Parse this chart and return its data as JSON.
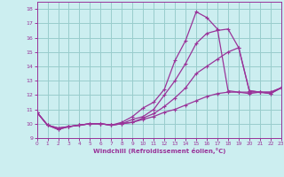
{
  "xlabel": "Windchill (Refroidissement éolien,°C)",
  "xlim": [
    0,
    23
  ],
  "ylim": [
    9,
    18.5
  ],
  "yticks": [
    9,
    10,
    11,
    12,
    13,
    14,
    15,
    16,
    17,
    18
  ],
  "xticks": [
    0,
    1,
    2,
    3,
    4,
    5,
    6,
    7,
    8,
    9,
    10,
    11,
    12,
    13,
    14,
    15,
    16,
    17,
    18,
    19,
    20,
    21,
    22,
    23
  ],
  "background_color": "#cceef0",
  "grid_color": "#99cccc",
  "line_color": "#993399",
  "lines": [
    {
      "x": [
        0,
        1,
        2,
        3,
        4,
        5,
        6,
        7,
        8,
        9,
        10,
        11,
        12,
        13,
        14,
        15,
        16,
        17,
        18,
        19,
        20,
        21,
        22,
        23
      ],
      "y": [
        10.8,
        9.9,
        9.6,
        9.8,
        9.9,
        10.0,
        10.0,
        9.9,
        10.1,
        10.5,
        11.1,
        11.5,
        12.4,
        14.4,
        15.8,
        17.8,
        17.4,
        16.6,
        12.3,
        12.2,
        12.1,
        12.2,
        12.1,
        12.5
      ]
    },
    {
      "x": [
        0,
        1,
        2,
        3,
        4,
        5,
        6,
        7,
        8,
        9,
        10,
        11,
        12,
        13,
        14,
        15,
        16,
        17,
        18,
        19,
        20,
        21,
        22,
        23
      ],
      "y": [
        10.8,
        9.9,
        9.6,
        9.8,
        9.9,
        10.0,
        10.0,
        9.9,
        10.0,
        10.3,
        10.5,
        11.0,
        12.0,
        13.0,
        14.2,
        15.6,
        16.3,
        16.5,
        16.6,
        15.3,
        12.3,
        12.2,
        12.1,
        12.5
      ]
    },
    {
      "x": [
        0,
        1,
        2,
        3,
        4,
        5,
        6,
        7,
        8,
        9,
        10,
        11,
        12,
        13,
        14,
        15,
        16,
        17,
        18,
        19,
        20,
        21,
        22,
        23
      ],
      "y": [
        10.8,
        9.9,
        9.7,
        9.8,
        9.9,
        10.0,
        10.0,
        9.9,
        10.0,
        10.1,
        10.4,
        10.7,
        11.2,
        11.8,
        12.5,
        13.5,
        14.0,
        14.5,
        15.0,
        15.3,
        12.3,
        12.2,
        12.2,
        12.5
      ]
    },
    {
      "x": [
        0,
        1,
        2,
        3,
        4,
        5,
        6,
        7,
        8,
        9,
        10,
        11,
        12,
        13,
        14,
        15,
        16,
        17,
        18,
        19,
        20,
        21,
        22,
        23
      ],
      "y": [
        10.8,
        9.9,
        9.7,
        9.8,
        9.9,
        10.0,
        10.0,
        9.9,
        10.0,
        10.1,
        10.3,
        10.5,
        10.8,
        11.0,
        11.3,
        11.6,
        11.9,
        12.1,
        12.2,
        12.2,
        12.2,
        12.2,
        12.2,
        12.5
      ]
    }
  ]
}
